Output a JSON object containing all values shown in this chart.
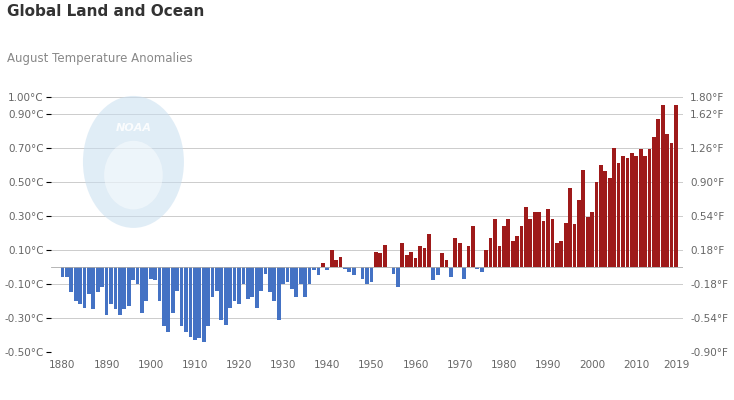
{
  "title": "Global Land and Ocean",
  "subtitle": "August Temperature Anomalies",
  "years": [
    1880,
    1881,
    1882,
    1883,
    1884,
    1885,
    1886,
    1887,
    1888,
    1889,
    1890,
    1891,
    1892,
    1893,
    1894,
    1895,
    1896,
    1897,
    1898,
    1899,
    1900,
    1901,
    1902,
    1903,
    1904,
    1905,
    1906,
    1907,
    1908,
    1909,
    1910,
    1911,
    1912,
    1913,
    1914,
    1915,
    1916,
    1917,
    1918,
    1919,
    1920,
    1921,
    1922,
    1923,
    1924,
    1925,
    1926,
    1927,
    1928,
    1929,
    1930,
    1931,
    1932,
    1933,
    1934,
    1935,
    1936,
    1937,
    1938,
    1939,
    1940,
    1941,
    1942,
    1943,
    1944,
    1945,
    1946,
    1947,
    1948,
    1949,
    1950,
    1951,
    1952,
    1953,
    1954,
    1955,
    1956,
    1957,
    1958,
    1959,
    1960,
    1961,
    1962,
    1963,
    1964,
    1965,
    1966,
    1967,
    1968,
    1969,
    1970,
    1971,
    1972,
    1973,
    1974,
    1975,
    1976,
    1977,
    1978,
    1979,
    1980,
    1981,
    1982,
    1983,
    1984,
    1985,
    1986,
    1987,
    1988,
    1989,
    1990,
    1991,
    1992,
    1993,
    1994,
    1995,
    1996,
    1997,
    1998,
    1999,
    2000,
    2001,
    2002,
    2003,
    2004,
    2005,
    2006,
    2007,
    2008,
    2009,
    2010,
    2011,
    2012,
    2013,
    2014,
    2015,
    2016,
    2017,
    2018,
    2019
  ],
  "anomalies": [
    -0.06,
    -0.06,
    -0.15,
    -0.2,
    -0.22,
    -0.24,
    -0.16,
    -0.25,
    -0.15,
    -0.12,
    -0.28,
    -0.22,
    -0.25,
    -0.28,
    -0.25,
    -0.23,
    -0.08,
    -0.1,
    -0.27,
    -0.2,
    -0.07,
    -0.08,
    -0.2,
    -0.35,
    -0.38,
    -0.27,
    -0.14,
    -0.35,
    -0.38,
    -0.41,
    -0.43,
    -0.42,
    -0.44,
    -0.35,
    -0.18,
    -0.14,
    -0.31,
    -0.34,
    -0.24,
    -0.2,
    -0.22,
    -0.1,
    -0.19,
    -0.18,
    -0.24,
    -0.14,
    -0.04,
    -0.15,
    -0.2,
    -0.31,
    -0.1,
    -0.09,
    -0.13,
    -0.18,
    -0.1,
    -0.18,
    -0.1,
    -0.02,
    -0.05,
    0.02,
    -0.02,
    0.1,
    0.04,
    0.06,
    -0.01,
    -0.03,
    -0.05,
    0.0,
    -0.07,
    -0.1,
    -0.09,
    0.09,
    0.08,
    0.13,
    0.0,
    -0.04,
    -0.12,
    0.14,
    0.07,
    0.09,
    0.05,
    0.12,
    0.11,
    0.19,
    -0.08,
    -0.05,
    0.08,
    0.04,
    -0.06,
    0.17,
    0.14,
    -0.07,
    0.12,
    0.24,
    -0.01,
    -0.03,
    0.1,
    0.17,
    0.28,
    0.12,
    0.24,
    0.28,
    0.15,
    0.18,
    0.24,
    0.35,
    0.28,
    0.32,
    0.32,
    0.27,
    0.34,
    0.28,
    0.14,
    0.15,
    0.26,
    0.46,
    0.25,
    0.39,
    0.57,
    0.29,
    0.32,
    0.5,
    0.6,
    0.56,
    0.52,
    0.7,
    0.61,
    0.65,
    0.64,
    0.67,
    0.65,
    0.69,
    0.65,
    0.69,
    0.76,
    0.87,
    0.95,
    0.78,
    0.73,
    0.95
  ],
  "bar_color_positive": "#9e1a1a",
  "bar_color_negative": "#4472c4",
  "background_color": "#ffffff",
  "plot_bg_color": "#ffffff",
  "grid_color": "#cccccc",
  "title_color": "#333333",
  "subtitle_color": "#888888",
  "ylim": [
    -0.5,
    1.05
  ],
  "yticks_left": [
    -0.5,
    -0.3,
    -0.1,
    0.1,
    0.3,
    0.5,
    0.7,
    0.9,
    1.0
  ],
  "ytick_labels_left": [
    "-0.50°C",
    "-0.30°C",
    "-0.10°C",
    "0.10°C",
    "0.30°C",
    "0.50°C",
    "0.70°C",
    "0.90°C",
    "1.00°C"
  ],
  "ytick_labels_right": [
    "-0.90°F",
    "-0.54°F",
    "-0.18°F",
    "0.18°F",
    "0.54°F",
    "0.90°F",
    "1.26°F",
    "1.62°F",
    "1.80°F"
  ],
  "xticks": [
    1880,
    1890,
    1900,
    1910,
    1920,
    1930,
    1940,
    1950,
    1960,
    1970,
    1980,
    1990,
    2000,
    2010,
    2019
  ],
  "xlim": [
    1877.5,
    2020.5
  ],
  "noaa_logo_color": "#c8dff0",
  "noaa_text_color": "#b8cfdf",
  "title_fontsize": 11,
  "subtitle_fontsize": 8.5,
  "tick_fontsize": 7.5
}
